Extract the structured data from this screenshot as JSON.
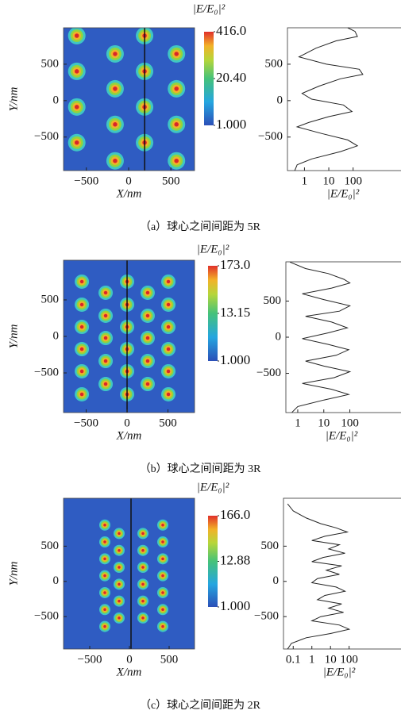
{
  "chart_data": [
    {
      "type": "heatmap",
      "caption": "（a）球心之间间距为 5R",
      "xlabel": "X/nm",
      "ylabel": "Y/nm",
      "colorbar_label": "|E/E₀|²",
      "clim": [
        1,
        416
      ],
      "colorbar_log": true,
      "colorbar_ticks": [
        {
          "value": 416,
          "label": "416.0"
        },
        {
          "value": 20.4,
          "label": "20.40"
        },
        {
          "value": 1,
          "label": "1.000"
        }
      ],
      "xlim": [
        -770,
        780
      ],
      "ylim": [
        -960,
        1000
      ],
      "xticks": [
        {
          "value": -500,
          "label": "−500"
        },
        0,
        500
      ],
      "yticks": [
        500,
        0,
        {
          "value": -500,
          "label": "−500"
        }
      ],
      "spots": {
        "x": [
          -613,
          -613,
          -613,
          -613,
          -160,
          -160,
          -160,
          -160,
          189,
          189,
          189,
          189,
          566,
          566,
          566,
          566
        ],
        "y": [
          891,
          402,
          -87,
          -576,
          641,
          163,
          -326,
          -826,
          891,
          402,
          -87,
          -576,
          641,
          163,
          -326,
          -826
        ]
      },
      "cut_x": 190
    },
    {
      "type": "line",
      "xlabel": "|E/E₀|²",
      "x_log": true,
      "xlim": [
        0.2,
        8000
      ],
      "ylim": [
        -960,
        1000
      ],
      "xticks": [
        1,
        10,
        100
      ],
      "yticks": [
        500,
        0,
        {
          "value": -500,
          "label": "−500"
        }
      ],
      "color": "#222222",
      "y": [
        1000,
        950,
        880,
        820,
        720,
        600,
        500,
        430,
        360,
        300,
        200,
        100,
        20,
        -60,
        -150,
        -220,
        -300,
        -360,
        -450,
        -540,
        -620,
        -700,
        -800,
        -880,
        -960
      ],
      "values": [
        60,
        120,
        150,
        20,
        3,
        0.6,
        8,
        180,
        250,
        30,
        4,
        0.8,
        2,
        40,
        90,
        10,
        1.5,
        0.5,
        5,
        60,
        150,
        30,
        2,
        0.5,
        0.4
      ]
    },
    {
      "type": "heatmap",
      "caption": "（b）球心之间间距为 3R",
      "xlabel": "X/nm",
      "ylabel": "Y/nm",
      "colorbar_label": "|E/E₀|²",
      "clim": [
        1,
        173
      ],
      "colorbar_log": true,
      "colorbar_ticks": [
        {
          "value": 173,
          "label": "173.0"
        },
        {
          "value": 13.15,
          "label": "13.15"
        },
        {
          "value": 1,
          "label": "1.000"
        }
      ],
      "xlim": [
        -777,
        825
      ],
      "ylim": [
        -1043,
        1043
      ],
      "xticks": [
        {
          "value": -500,
          "label": "−500"
        },
        0,
        500
      ],
      "yticks": [
        500,
        0,
        {
          "value": -500,
          "label": "−500"
        }
      ],
      "spots": {
        "x": [
          -553,
          -553,
          -553,
          -553,
          -553,
          -553,
          -262,
          -262,
          -262,
          -262,
          -262,
          0,
          0,
          0,
          0,
          0,
          0,
          252,
          252,
          252,
          252,
          252,
          505,
          505,
          505,
          505,
          505,
          505
        ],
        "y": [
          750,
          435,
          130,
          -174,
          -478,
          -793,
          598,
          283,
          -22,
          -337,
          -652,
          750,
          435,
          130,
          -174,
          -478,
          -793,
          598,
          283,
          -22,
          -337,
          -652,
          750,
          435,
          130,
          -174,
          -478,
          -793
        ]
      },
      "cut_x": 0
    },
    {
      "type": "line",
      "xlabel": "|E/E₀|²",
      "x_log": true,
      "xlim": [
        0.35,
        8000
      ],
      "ylim": [
        -1043,
        1043
      ],
      "xticks": [
        1,
        10,
        100
      ],
      "yticks": [
        500,
        0,
        {
          "value": -500,
          "label": "−500"
        }
      ],
      "color": "#222222",
      "y": [
        1040,
        950,
        880,
        800,
        750,
        680,
        600,
        520,
        435,
        360,
        290,
        210,
        130,
        60,
        -20,
        -100,
        -174,
        -250,
        -330,
        -400,
        -478,
        -560,
        -640,
        -720,
        -793,
        -870,
        -960,
        -1040
      ],
      "values": [
        0.5,
        2,
        15,
        60,
        100,
        20,
        1.5,
        10,
        100,
        40,
        2,
        20,
        80,
        15,
        1.5,
        15,
        90,
        30,
        2,
        10,
        100,
        25,
        1.5,
        20,
        90,
        10,
        1,
        0.6
      ]
    },
    {
      "type": "heatmap",
      "caption": "（c）球心之间间距为 2R",
      "xlabel": "X/nm",
      "ylabel": "Y/nm",
      "colorbar_label": "|E/E₀|²",
      "clim": [
        1,
        166
      ],
      "colorbar_log": true,
      "colorbar_ticks": [
        {
          "value": 166,
          "label": "166.0"
        },
        {
          "value": 12.88,
          "label": "12.88"
        },
        {
          "value": 1,
          "label": "1.000"
        }
      ],
      "xlim": [
        -830,
        820
      ],
      "ylim": [
        -960,
        1180
      ],
      "xticks": [
        {
          "value": -500,
          "label": "−500"
        },
        0,
        500
      ],
      "yticks": [
        500,
        0,
        {
          "value": -500,
          "label": "−500"
        }
      ],
      "spots": {
        "x": [
          -310,
          -310,
          -310,
          -310,
          -310,
          -310,
          -310,
          -130,
          -130,
          -130,
          -130,
          -130,
          -130,
          170,
          170,
          170,
          170,
          170,
          170,
          420,
          420,
          420,
          420,
          420,
          420,
          420
        ],
        "y": [
          800,
          560,
          320,
          80,
          -160,
          -400,
          -640,
          680,
          440,
          200,
          -40,
          -280,
          -520,
          680,
          440,
          200,
          -40,
          -280,
          -520,
          800,
          560,
          320,
          80,
          -160,
          -400,
          -640
        ]
      },
      "cut_x": 20
    },
    {
      "type": "line",
      "xlabel": "|E/E₀|²",
      "x_log": true,
      "xlim": [
        0.03,
        50000
      ],
      "ylim": [
        -960,
        1180
      ],
      "xticks": [
        0.1,
        1,
        10,
        100
      ],
      "yticks": [
        500,
        0,
        {
          "value": -500,
          "label": "−500"
        }
      ],
      "color": "#222222",
      "y": [
        1100,
        1000,
        900,
        820,
        760,
        700,
        640,
        580,
        520,
        460,
        400,
        340,
        280,
        220,
        160,
        100,
        40,
        -20,
        -80,
        -140,
        -200,
        -260,
        -320,
        -380,
        -440,
        -500,
        -560,
        -620,
        -680,
        -740,
        -800,
        -880,
        -960
      ],
      "values": [
        0.05,
        0.1,
        0.5,
        3,
        20,
        80,
        5,
        1,
        30,
        8,
        60,
        4,
        1,
        40,
        6,
        30,
        2,
        1,
        20,
        60,
        5,
        2,
        40,
        8,
        50,
        3,
        1,
        30,
        100,
        10,
        0.5,
        0.08,
        0.05
      ]
    }
  ]
}
